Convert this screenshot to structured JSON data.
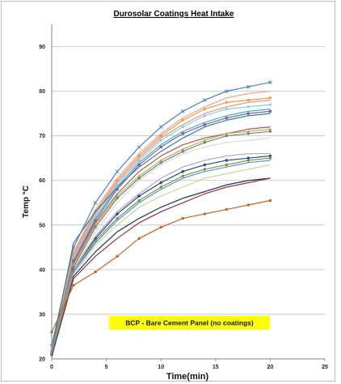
{
  "chart_data": {
    "type": "line",
    "title": "Durosolar Coatings Heat Intake",
    "xlabel": "Time(min)",
    "ylabel": "Temp °C",
    "xlim": [
      0,
      25
    ],
    "ylim": [
      20,
      95
    ],
    "x_ticks": [
      "0",
      "5",
      "10",
      "15",
      "20",
      "25"
    ],
    "y_ticks": [
      "20",
      "30",
      "40",
      "50",
      "60",
      "70",
      "80",
      "90"
    ],
    "grid": "horizontal",
    "legend": "none",
    "annotation": "BCP - Bare Cement Panel (no coatings)",
    "annotation_color": "#ffff00",
    "x": [
      0,
      2,
      4,
      6,
      8,
      10,
      12,
      14,
      16,
      18,
      20
    ],
    "series": [
      {
        "color": "#4f81bd",
        "marker": "x",
        "values": [
          23,
          45,
          55,
          62,
          67.5,
          72,
          75.5,
          78,
          80,
          81,
          82
        ]
      },
      {
        "color": "#f2a48a",
        "marker": "none",
        "values": [
          22.5,
          44,
          53.5,
          60.5,
          66,
          70.5,
          74,
          76.5,
          78.5,
          79.5,
          80
        ]
      },
      {
        "color": "#f79646",
        "marker": "circle",
        "values": [
          22,
          43.5,
          53,
          60,
          65.5,
          70,
          73.5,
          76,
          77.5,
          78,
          78.5
        ]
      },
      {
        "color": "#d99694",
        "marker": "none",
        "values": [
          22,
          43,
          52.5,
          59.5,
          65,
          69.5,
          72.5,
          75,
          76.5,
          77.5,
          78
        ]
      },
      {
        "color": "#93cddd",
        "marker": "circle",
        "values": [
          21.5,
          42.5,
          52,
          59,
          64.5,
          69,
          72,
          74.5,
          76,
          76.5,
          77
        ]
      },
      {
        "color": "#4bacc6",
        "marker": "none",
        "values": [
          21.5,
          42,
          51.5,
          58.5,
          64,
          68,
          71,
          73,
          74.5,
          75.5,
          76
        ]
      },
      {
        "color": "#8064a2",
        "marker": "square",
        "values": [
          21.5,
          42,
          51,
          58,
          63.5,
          67.5,
          70.5,
          72.5,
          74,
          75,
          75.5
        ]
      },
      {
        "color": "#31859c",
        "marker": "none",
        "values": [
          22,
          46,
          53,
          58.5,
          63,
          66.5,
          69.5,
          72,
          73.5,
          74.5,
          75
        ]
      },
      {
        "color": "#c0504d",
        "marker": "none",
        "values": [
          21.5,
          41.5,
          50.5,
          57,
          62,
          65.5,
          68,
          69.5,
          70.5,
          71.5,
          72
        ]
      },
      {
        "color": "#9bbb59",
        "marker": "triangle",
        "values": [
          21.5,
          41,
          50,
          56.5,
          61,
          64.5,
          67,
          69,
          70.5,
          71,
          71.5
        ]
      },
      {
        "color": "#7f7f7f",
        "marker": "circle",
        "values": [
          21,
          40.5,
          49.5,
          56,
          60.5,
          64,
          66.5,
          68.5,
          70,
          70.5,
          71
        ]
      },
      {
        "color": "#d9d9d9",
        "marker": "none",
        "values": [
          21,
          40,
          48.5,
          55,
          60,
          63.5,
          66,
          67.5,
          68.5,
          69,
          69.5
        ]
      },
      {
        "color": "#1f497d",
        "marker": "diamond",
        "values": [
          21,
          40,
          47,
          52.5,
          56.5,
          59.5,
          62,
          63.5,
          64.5,
          65,
          65.5
        ]
      },
      {
        "color": "#b3a2c7",
        "marker": "none",
        "values": [
          21,
          40,
          47.5,
          53,
          57,
          60.5,
          63,
          64.5,
          65.5,
          66,
          66
        ]
      },
      {
        "color": "#76923c",
        "marker": "circle",
        "values": [
          21,
          39.5,
          46.5,
          51.5,
          55.5,
          58.5,
          61,
          62.5,
          63.5,
          64.5,
          65
        ]
      },
      {
        "color": "#558ed5",
        "marker": "none",
        "values": [
          21,
          39.5,
          46,
          51,
          55,
          58,
          60.5,
          62,
          63,
          64,
          64.5
        ]
      },
      {
        "color": "#c3d69b",
        "marker": "none",
        "values": [
          20.5,
          39,
          45.5,
          50,
          54,
          56.5,
          58.5,
          60.5,
          61.5,
          62.5,
          63.5
        ]
      },
      {
        "color": "#17375e",
        "marker": "none",
        "values": [
          20.5,
          38.5,
          44,
          48.5,
          51.5,
          54,
          56,
          57.5,
          59,
          60,
          60.5
        ]
      },
      {
        "color": "#943634",
        "marker": "none",
        "values": [
          20.5,
          38,
          43,
          47,
          50.5,
          53,
          55,
          57,
          58.5,
          59.5,
          60.5
        ]
      },
      {
        "color": "#c0652a",
        "marker": "circle",
        "values": [
          26,
          36.5,
          39.5,
          43,
          47,
          49.5,
          51.5,
          52.5,
          53.5,
          54.5,
          55.5
        ]
      }
    ]
  }
}
